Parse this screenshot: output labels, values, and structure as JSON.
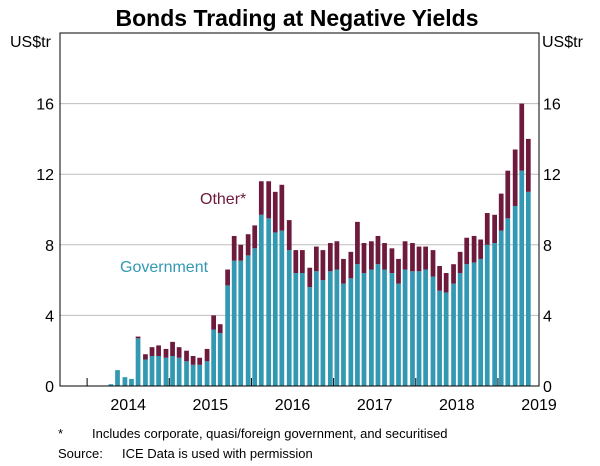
{
  "chart_data": {
    "type": "bar",
    "stacked": true,
    "title": "Bonds Trading at Negative Yields",
    "ylabel_left": "US$tr",
    "ylabel_right": "US$tr",
    "ylim": [
      0,
      20
    ],
    "yticks": [
      0,
      4,
      8,
      12,
      16
    ],
    "ytick_labels": [
      "0",
      "4",
      "8",
      "12",
      "16"
    ],
    "x_start": 2013.67,
    "x_end": 2019.5,
    "xticks": [
      2014,
      2015,
      2016,
      2017,
      2018,
      2019
    ],
    "xtick_labels": [
      "2014",
      "2015",
      "2016",
      "2017",
      "2018",
      "2019"
    ],
    "x": [
      2014.29,
      2014.37,
      2014.46,
      2014.54,
      2014.62,
      2014.71,
      2014.79,
      2014.87,
      2014.96,
      2015.04,
      2015.12,
      2015.21,
      2015.29,
      2015.37,
      2015.46,
      2015.54,
      2015.62,
      2015.71,
      2015.79,
      2015.87,
      2015.96,
      2016.04,
      2016.12,
      2016.21,
      2016.29,
      2016.37,
      2016.46,
      2016.54,
      2016.62,
      2016.71,
      2016.79,
      2016.87,
      2016.96,
      2017.04,
      2017.12,
      2017.21,
      2017.29,
      2017.37,
      2017.46,
      2017.54,
      2017.62,
      2017.71,
      2017.79,
      2017.87,
      2017.96,
      2018.04,
      2018.12,
      2018.21,
      2018.29,
      2018.37,
      2018.46,
      2018.54,
      2018.62,
      2018.71,
      2018.79,
      2018.87,
      2018.96,
      2019.04,
      2019.12,
      2019.21,
      2019.29,
      2019.37
    ],
    "series": [
      {
        "name": "Government",
        "label": "Government",
        "color": "#3399b3",
        "values": [
          0.1,
          0.9,
          0.5,
          0.4,
          2.7,
          1.5,
          1.7,
          1.7,
          1.6,
          1.7,
          1.6,
          1.4,
          1.2,
          1.2,
          1.4,
          3.2,
          3.0,
          5.7,
          7.1,
          7.1,
          7.4,
          7.8,
          9.7,
          9.5,
          8.7,
          8.8,
          7.7,
          6.4,
          6.4,
          5.6,
          6.5,
          6.0,
          6.5,
          6.6,
          5.8,
          6.1,
          6.9,
          6.4,
          6.6,
          6.9,
          6.6,
          6.4,
          5.8,
          6.6,
          6.5,
          6.5,
          6.6,
          6.2,
          5.4,
          5.3,
          5.8,
          6.4,
          6.9,
          7.0,
          7.2,
          8.0,
          8.1,
          8.8,
          9.5,
          10.2,
          12.2,
          11.0
        ]
      },
      {
        "name": "Other",
        "label": "Other*",
        "color": "#6e1a3c",
        "values": [
          0,
          0,
          0,
          0,
          0.1,
          0.3,
          0.5,
          0.6,
          0.5,
          0.8,
          0.6,
          0.6,
          0.5,
          0.4,
          0.7,
          0.8,
          0.5,
          0.9,
          1.4,
          0.9,
          1.2,
          1.3,
          1.9,
          2.1,
          2.3,
          2.6,
          1.7,
          1.3,
          1.3,
          1.1,
          1.4,
          1.7,
          1.6,
          1.6,
          1.4,
          1.5,
          2.4,
          1.7,
          1.6,
          1.6,
          1.5,
          1.4,
          1.4,
          1.6,
          1.6,
          1.4,
          1.3,
          1.5,
          1.4,
          1.1,
          1.1,
          1.2,
          1.5,
          1.5,
          1.1,
          1.8,
          1.6,
          2.1,
          2.7,
          3.2,
          3.8,
          3.0
        ]
      }
    ]
  },
  "footnotes": {
    "asterisk_mark": "*",
    "asterisk_text": "Includes corporate, quasi/foreign government, and securitised",
    "source_label": "Source:",
    "source_text": "ICE Data is used with permission"
  }
}
